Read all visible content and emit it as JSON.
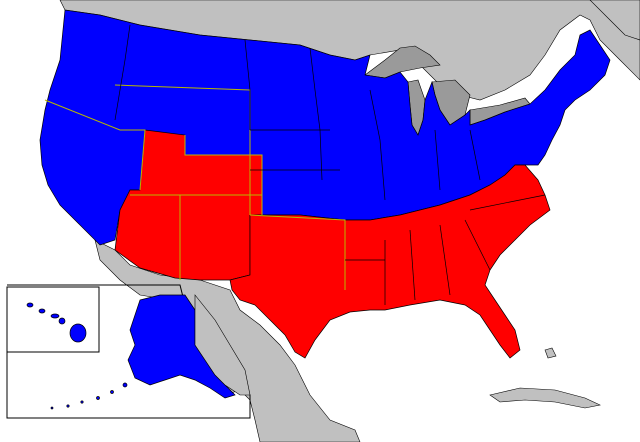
{
  "map": {
    "colors": {
      "ocean": "#ffffff",
      "land": "#c0c0c0",
      "water": "#9a9a9a",
      "blue": "#0000ff",
      "red": "#ff0000",
      "border": "#000000",
      "region_border": "#b8b800",
      "inset_frame": "#000000"
    },
    "regions": [
      {
        "name": "west-coast-north",
        "group": "blue"
      },
      {
        "name": "north-central",
        "group": "blue"
      },
      {
        "name": "great-lakes-northeast",
        "group": "blue"
      },
      {
        "name": "southwest",
        "group": "red"
      },
      {
        "name": "south",
        "group": "red"
      }
    ],
    "insets": [
      "hawaii",
      "alaska"
    ]
  }
}
